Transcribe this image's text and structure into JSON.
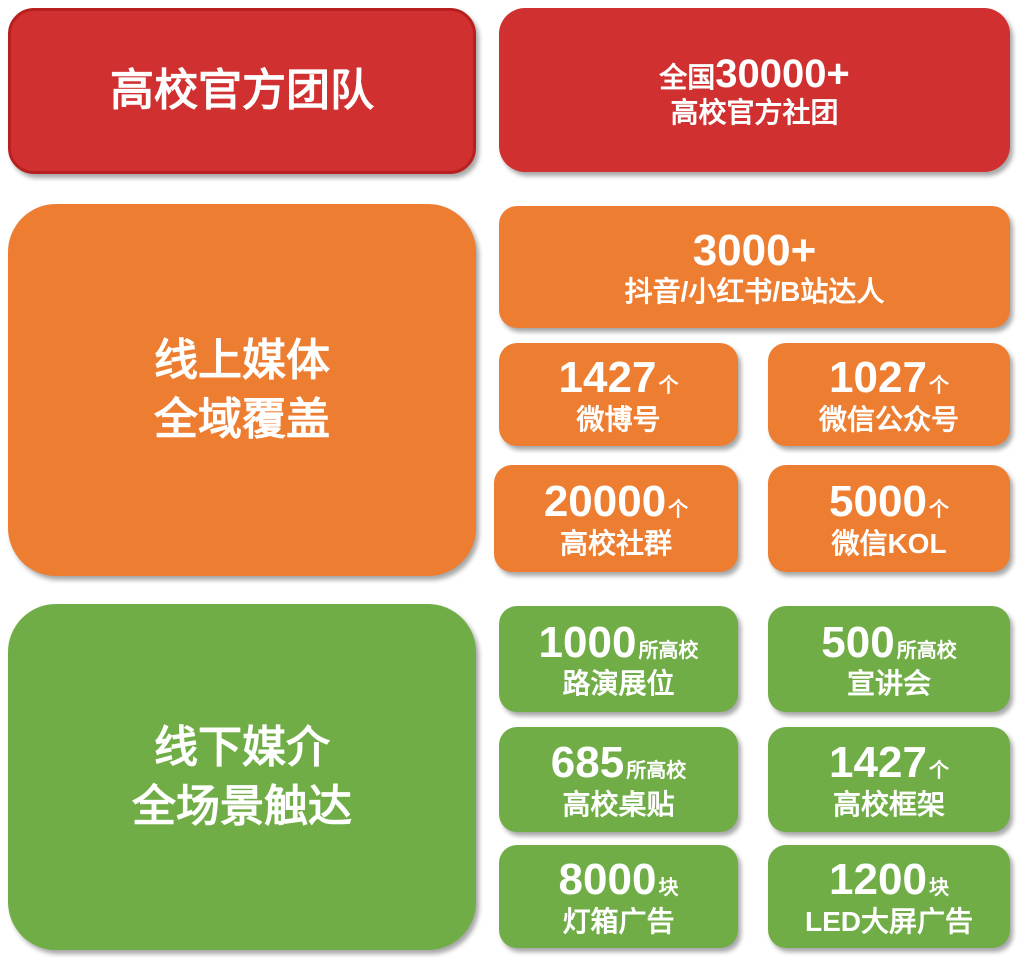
{
  "colors": {
    "red": "#d03030",
    "orange": "#ed7d31",
    "green": "#70ad47"
  },
  "team": {
    "title": "高校官方团队",
    "stat_prefix": "全国",
    "stat_number": "30000+",
    "stat_label": "高校官方社团"
  },
  "online": {
    "title_line1": "线上媒体",
    "title_line2": "全域覆盖",
    "creators": {
      "number": "3000+",
      "label": "抖音/小红书/B站达人"
    },
    "items": [
      {
        "number": "1427",
        "unit": "个",
        "label": "微博号"
      },
      {
        "number": "1027",
        "unit": "个",
        "label": "微信公众号"
      },
      {
        "number": "20000",
        "unit": "个",
        "label": "高校社群"
      },
      {
        "number": "5000",
        "unit": "个",
        "label": "微信KOL"
      }
    ]
  },
  "offline": {
    "title_line1": "线下媒介",
    "title_line2": "全场景触达",
    "items": [
      {
        "number": "1000",
        "unit": "所高校",
        "label": "路演展位"
      },
      {
        "number": "500",
        "unit": "所高校",
        "label": "宣讲会"
      },
      {
        "number": "685",
        "unit": "所高校",
        "label": "高校桌贴"
      },
      {
        "number": "1427",
        "unit": "个",
        "label": "高校框架"
      },
      {
        "number": "8000",
        "unit": "块",
        "label": "灯箱广告"
      },
      {
        "number": "1200",
        "unit": "块",
        "label": "LED大屏广告"
      }
    ]
  }
}
